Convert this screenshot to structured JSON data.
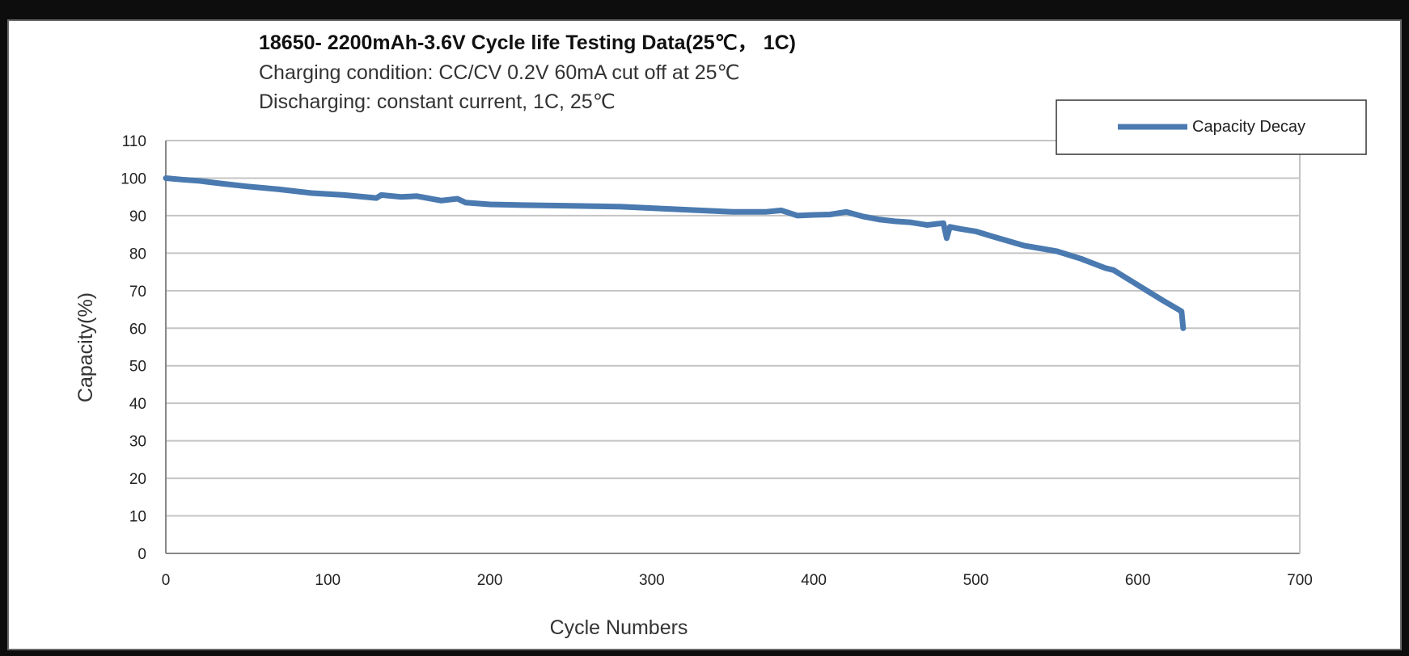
{
  "chart_data": {
    "type": "line",
    "title": "18650- 2200mAh-3.6V Cycle life Testing Data(25℃， 1C)",
    "subtitles": [
      "Charging condition: CC/CV 0.2V 60mA cut off at 25℃",
      "Discharging: constant current, 1C, 25℃"
    ],
    "xlabel": "Cycle Numbers",
    "ylabel": "Capacity(%)",
    "xlim": [
      0,
      700
    ],
    "ylim": [
      0,
      110
    ],
    "xticks": [
      0,
      100,
      200,
      300,
      400,
      500,
      600,
      700
    ],
    "yticks": [
      0,
      10,
      20,
      30,
      40,
      50,
      60,
      70,
      80,
      90,
      100,
      110
    ],
    "grid": "horizontal",
    "legend_position": "top-right",
    "series": [
      {
        "name": "Capacity Decay",
        "color": "#4a7ab0",
        "x": [
          0,
          10,
          20,
          35,
          50,
          70,
          90,
          110,
          130,
          133,
          145,
          155,
          170,
          180,
          185,
          200,
          220,
          250,
          280,
          300,
          320,
          350,
          370,
          380,
          390,
          400,
          410,
          420,
          430,
          440,
          450,
          460,
          470,
          480,
          482,
          484,
          490,
          500,
          510,
          530,
          550,
          565,
          580,
          585,
          600,
          615,
          627,
          628
        ],
        "y": [
          100,
          99.6,
          99.3,
          98.5,
          97.8,
          97,
          96,
          95.5,
          94.7,
          95.5,
          95,
          95.2,
          94,
          94.5,
          93.5,
          93,
          92.8,
          92.6,
          92.4,
          92,
          91.6,
          91,
          91,
          91.4,
          90,
          90.2,
          90.3,
          91,
          89.8,
          89,
          88.5,
          88.2,
          87.5,
          88,
          84,
          87,
          86.5,
          85.8,
          84.5,
          82,
          80.5,
          78.5,
          76,
          75.5,
          71.5,
          67.5,
          64.5,
          60
        ]
      }
    ]
  }
}
